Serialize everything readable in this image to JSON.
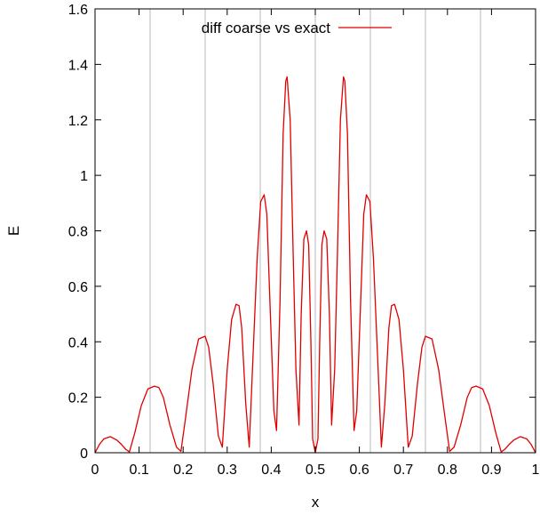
{
  "chart_data": {
    "type": "line",
    "title": "",
    "xlabel": "x",
    "ylabel": "E",
    "xlim": [
      0,
      1
    ],
    "ylim": [
      0,
      1.6
    ],
    "grid": "vertical",
    "legend_position": "top",
    "x_ticks": [
      0,
      0.1,
      0.2,
      0.3,
      0.4,
      0.5,
      0.6,
      0.7,
      0.8,
      0.9,
      1
    ],
    "x_tick_labels": [
      "0",
      "0.1",
      "0.2",
      "0.3",
      "0.4",
      "0.5",
      "0.6",
      "0.7",
      "0.8",
      "0.9",
      "1"
    ],
    "y_ticks": [
      0,
      0.2,
      0.4,
      0.6,
      0.8,
      1,
      1.2,
      1.4,
      1.6
    ],
    "y_tick_labels": [
      "0",
      "0.2",
      "0.4",
      "0.6",
      "0.8",
      "1",
      "1.2",
      "1.4",
      "1.6"
    ],
    "grid_x": [
      0.125,
      0.25,
      0.375,
      0.5,
      0.625,
      0.75,
      0.875
    ],
    "series": [
      {
        "name": "diff coarse vs exact",
        "color": "#e00000",
        "x": [
          0,
          0.01,
          0.02,
          0.035,
          0.05,
          0.06,
          0.07,
          0.078,
          0.09,
          0.105,
          0.12,
          0.135,
          0.145,
          0.155,
          0.17,
          0.185,
          0.195,
          0.205,
          0.22,
          0.235,
          0.25,
          0.258,
          0.268,
          0.28,
          0.289,
          0.3,
          0.31,
          0.32,
          0.327,
          0.333,
          0.342,
          0.35,
          0.36,
          0.368,
          0.376,
          0.384,
          0.39,
          0.398,
          0.406,
          0.412,
          0.42,
          0.427,
          0.433,
          0.436,
          0.443,
          0.45,
          0.456,
          0.463,
          0.468,
          0.474,
          0.48,
          0.485,
          0.49,
          0.494,
          0.5,
          0.506,
          0.51,
          0.515,
          0.52,
          0.526,
          0.532,
          0.537,
          0.544,
          0.55,
          0.557,
          0.564,
          0.567,
          0.573,
          0.58,
          0.588,
          0.594,
          0.602,
          0.61,
          0.616,
          0.624,
          0.632,
          0.64,
          0.65,
          0.658,
          0.667,
          0.673,
          0.68,
          0.69,
          0.7,
          0.711,
          0.72,
          0.732,
          0.742,
          0.75,
          0.765,
          0.78,
          0.795,
          0.805,
          0.815,
          0.83,
          0.845,
          0.855,
          0.865,
          0.88,
          0.895,
          0.91,
          0.922,
          0.93,
          0.94,
          0.95,
          0.965,
          0.98,
          0.99,
          1
        ],
        "values": [
          0,
          0.03,
          0.05,
          0.058,
          0.045,
          0.03,
          0.012,
          0.003,
          0.07,
          0.17,
          0.23,
          0.24,
          0.235,
          0.2,
          0.1,
          0.02,
          0.005,
          0.12,
          0.3,
          0.41,
          0.42,
          0.38,
          0.25,
          0.06,
          0.02,
          0.3,
          0.48,
          0.535,
          0.53,
          0.45,
          0.18,
          0.02,
          0.4,
          0.7,
          0.905,
          0.93,
          0.86,
          0.5,
          0.15,
          0.08,
          0.55,
          1.15,
          1.34,
          1.355,
          1.2,
          0.7,
          0.3,
          0.1,
          0.5,
          0.77,
          0.8,
          0.75,
          0.4,
          0.05,
          0,
          0.05,
          0.4,
          0.75,
          0.8,
          0.77,
          0.5,
          0.1,
          0.3,
          0.7,
          1.2,
          1.355,
          1.34,
          1.15,
          0.55,
          0.08,
          0.15,
          0.5,
          0.86,
          0.93,
          0.905,
          0.7,
          0.4,
          0.02,
          0.18,
          0.45,
          0.53,
          0.535,
          0.48,
          0.3,
          0.02,
          0.06,
          0.25,
          0.38,
          0.42,
          0.41,
          0.3,
          0.12,
          0.005,
          0.02,
          0.1,
          0.2,
          0.235,
          0.24,
          0.23,
          0.17,
          0.07,
          0.003,
          0.012,
          0.03,
          0.045,
          0.058,
          0.05,
          0.03,
          0
        ]
      }
    ]
  }
}
